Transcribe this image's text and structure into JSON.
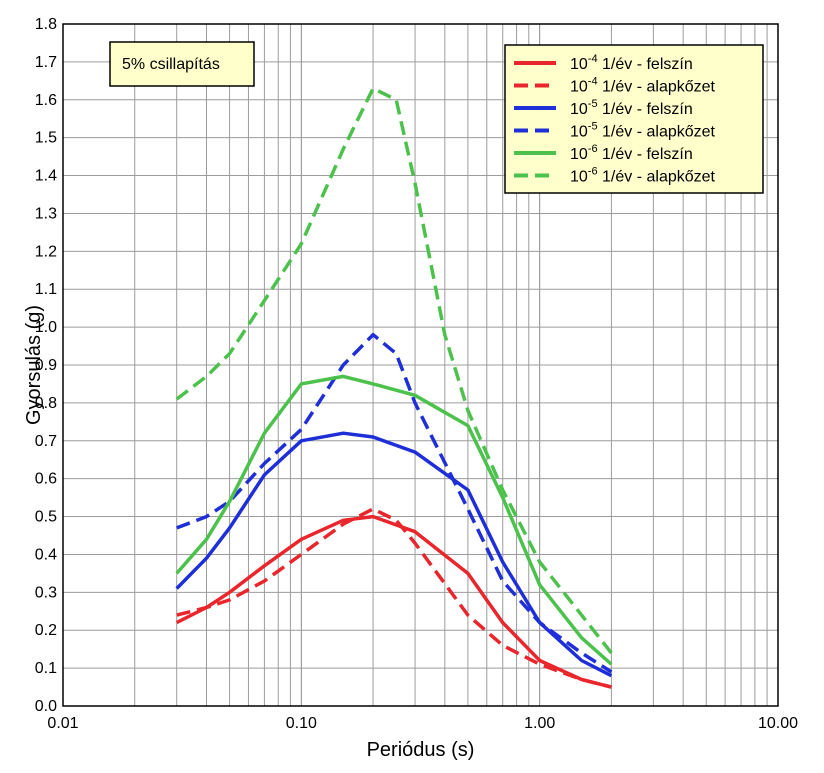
{
  "chart_data": {
    "type": "line",
    "xscale": "log",
    "xlabel": "Periódus (s)",
    "ylabel": "Gyorsulás (g)",
    "xlim": [
      0.01,
      10
    ],
    "ylim": [
      0,
      1.8
    ],
    "grid": true,
    "xtick_labels": [
      {
        "value": 0.01,
        "label": "0.01"
      },
      {
        "value": 0.1,
        "label": "0.10"
      },
      {
        "value": 1,
        "label": "1.00"
      },
      {
        "value": 10,
        "label": "10.00"
      }
    ],
    "ytick_labels": [
      "0.0",
      "0.1",
      "0.2",
      "0.3",
      "0.4",
      "0.5",
      "0.6",
      "0.7",
      "0.8",
      "0.9",
      "1.0",
      "1.1",
      "1.2",
      "1.3",
      "1.4",
      "1.5",
      "1.6",
      "1.7",
      "1.8"
    ],
    "annotation": "5% csillapítás",
    "legend_position": "top-right",
    "series": [
      {
        "name": "10-4 1/év - felszín",
        "legend_base": "10",
        "legend_exp": "-4",
        "legend_rest": " 1/év - felszín",
        "color": "#e8262b",
        "dash": "solid",
        "x": [
          0.03,
          0.04,
          0.05,
          0.07,
          0.1,
          0.15,
          0.2,
          0.3,
          0.5,
          0.7,
          1.0,
          1.5,
          2.0
        ],
        "y": [
          0.22,
          0.26,
          0.3,
          0.37,
          0.44,
          0.49,
          0.5,
          0.46,
          0.35,
          0.22,
          0.12,
          0.07,
          0.05
        ]
      },
      {
        "name": "10-4 1/év - alapkőzet",
        "legend_base": "10",
        "legend_exp": "-4",
        "legend_rest": " 1/év - alapkőzet",
        "color": "#e8262b",
        "dash": "dash",
        "x": [
          0.03,
          0.04,
          0.05,
          0.07,
          0.1,
          0.15,
          0.2,
          0.25,
          0.3,
          0.5,
          0.7,
          1.0,
          1.5,
          2.0
        ],
        "y": [
          0.24,
          0.26,
          0.28,
          0.33,
          0.4,
          0.48,
          0.52,
          0.49,
          0.43,
          0.24,
          0.16,
          0.11,
          0.07,
          0.05
        ]
      },
      {
        "name": "10-5 1/év - felszín",
        "legend_base": "10",
        "legend_exp": "-5",
        "legend_rest": " 1/év - felszín",
        "color": "#1f2fd8",
        "dash": "solid",
        "x": [
          0.03,
          0.04,
          0.05,
          0.07,
          0.1,
          0.15,
          0.2,
          0.3,
          0.5,
          0.7,
          1.0,
          1.5,
          2.0
        ],
        "y": [
          0.31,
          0.39,
          0.47,
          0.61,
          0.7,
          0.72,
          0.71,
          0.67,
          0.57,
          0.38,
          0.22,
          0.12,
          0.08
        ]
      },
      {
        "name": "10-5 1/év - alapkőzet",
        "legend_base": "10",
        "legend_exp": "-5",
        "legend_rest": " 1/év - alapkőzet",
        "color": "#1f2fd8",
        "dash": "dash",
        "x": [
          0.03,
          0.04,
          0.05,
          0.07,
          0.1,
          0.15,
          0.2,
          0.25,
          0.3,
          0.5,
          0.7,
          1.0,
          1.5,
          2.0
        ],
        "y": [
          0.47,
          0.5,
          0.54,
          0.64,
          0.73,
          0.9,
          0.98,
          0.93,
          0.8,
          0.52,
          0.33,
          0.22,
          0.14,
          0.09
        ]
      },
      {
        "name": "10-6 1/év - felszín",
        "legend_base": "10",
        "legend_exp": "-6",
        "legend_rest": " 1/év - felszín",
        "color": "#4cc24c",
        "dash": "solid",
        "x": [
          0.03,
          0.04,
          0.05,
          0.07,
          0.1,
          0.15,
          0.2,
          0.3,
          0.5,
          0.7,
          1.0,
          1.5,
          2.0
        ],
        "y": [
          0.35,
          0.44,
          0.54,
          0.72,
          0.85,
          0.87,
          0.85,
          0.82,
          0.74,
          0.55,
          0.32,
          0.18,
          0.11
        ]
      },
      {
        "name": "10-6 1/év - alapkőzet",
        "legend_base": "10",
        "legend_exp": "-6",
        "legend_rest": " 1/év - alapkőzet",
        "color": "#4cc24c",
        "dash": "dash",
        "x": [
          0.03,
          0.04,
          0.05,
          0.07,
          0.1,
          0.15,
          0.2,
          0.25,
          0.3,
          0.4,
          0.5,
          0.7,
          1.0,
          1.5,
          2.0
        ],
        "y": [
          0.81,
          0.87,
          0.93,
          1.07,
          1.22,
          1.47,
          1.63,
          1.6,
          1.38,
          0.98,
          0.78,
          0.57,
          0.38,
          0.24,
          0.14
        ]
      }
    ]
  }
}
